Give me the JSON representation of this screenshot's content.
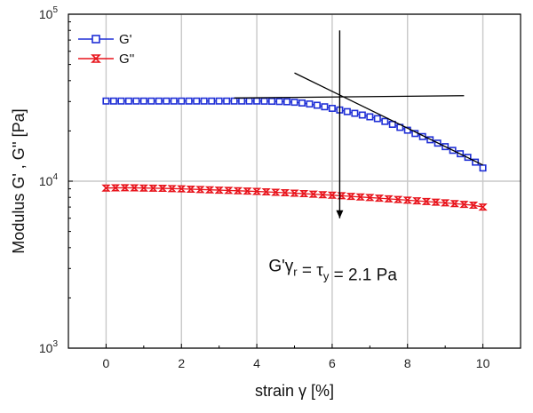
{
  "chart_data": {
    "type": "scatter",
    "xlabel": "strain γ [%]",
    "ylabel": "Modulus G' , G'' [Pa]",
    "xlim": [
      -1,
      11
    ],
    "ylim": [
      1000,
      100000
    ],
    "yscale": "log",
    "grid": true,
    "legend_position": "top-left",
    "x_ticks": [
      0,
      2,
      4,
      6,
      8,
      10
    ],
    "y_ticks": [
      {
        "value": 1000,
        "base": "10",
        "exp": "3"
      },
      {
        "value": 10000,
        "base": "10",
        "exp": "4"
      },
      {
        "value": 100000,
        "base": "10",
        "exp": "5"
      }
    ],
    "series": [
      {
        "name": "G'",
        "color": "#1f2fd6",
        "marker": "square",
        "points": [
          [
            0,
            30200
          ],
          [
            0.2,
            30200
          ],
          [
            0.4,
            30200
          ],
          [
            0.6,
            30200
          ],
          [
            0.8,
            30200
          ],
          [
            1,
            30200
          ],
          [
            1.2,
            30200
          ],
          [
            1.4,
            30200
          ],
          [
            1.6,
            30200
          ],
          [
            1.8,
            30200
          ],
          [
            2,
            30200
          ],
          [
            2.2,
            30200
          ],
          [
            2.4,
            30200
          ],
          [
            2.6,
            30200
          ],
          [
            2.8,
            30200
          ],
          [
            3,
            30200
          ],
          [
            3.2,
            30200
          ],
          [
            3.4,
            30200
          ],
          [
            3.6,
            30200
          ],
          [
            3.8,
            30200
          ],
          [
            4,
            30200
          ],
          [
            4.2,
            30150
          ],
          [
            4.4,
            30100
          ],
          [
            4.6,
            30000
          ],
          [
            4.8,
            29900
          ],
          [
            5,
            29700
          ],
          [
            5.2,
            29400
          ],
          [
            5.4,
            29000
          ],
          [
            5.6,
            28500
          ],
          [
            5.8,
            27900
          ],
          [
            6,
            27300
          ],
          [
            6.2,
            26700
          ],
          [
            6.4,
            26100
          ],
          [
            6.6,
            25500
          ],
          [
            6.8,
            24900
          ],
          [
            7,
            24300
          ],
          [
            7.2,
            23700
          ],
          [
            7.4,
            22800
          ],
          [
            7.6,
            21900
          ],
          [
            7.8,
            21000
          ],
          [
            8,
            20200
          ],
          [
            8.2,
            19300
          ],
          [
            8.4,
            18500
          ],
          [
            8.6,
            17700
          ],
          [
            8.8,
            16900
          ],
          [
            9,
            16100
          ],
          [
            9.2,
            15300
          ],
          [
            9.4,
            14600
          ],
          [
            9.6,
            13900
          ],
          [
            9.8,
            13000
          ],
          [
            10,
            12000
          ]
        ]
      },
      {
        "name": "G''",
        "color": "#e8141c",
        "marker": "hourglass",
        "points": [
          [
            0,
            9100
          ],
          [
            0.25,
            9120
          ],
          [
            0.5,
            9130
          ],
          [
            0.75,
            9120
          ],
          [
            1,
            9100
          ],
          [
            1.25,
            9080
          ],
          [
            1.5,
            9060
          ],
          [
            1.75,
            9030
          ],
          [
            2,
            9000
          ],
          [
            2.25,
            8960
          ],
          [
            2.5,
            8920
          ],
          [
            2.75,
            8880
          ],
          [
            3,
            8840
          ],
          [
            3.25,
            8800
          ],
          [
            3.5,
            8760
          ],
          [
            3.75,
            8720
          ],
          [
            4,
            8680
          ],
          [
            4.25,
            8630
          ],
          [
            4.5,
            8580
          ],
          [
            4.75,
            8530
          ],
          [
            5,
            8480
          ],
          [
            5.25,
            8420
          ],
          [
            5.5,
            8360
          ],
          [
            5.75,
            8300
          ],
          [
            6,
            8240
          ],
          [
            6.25,
            8180
          ],
          [
            6.5,
            8110
          ],
          [
            6.75,
            8040
          ],
          [
            7,
            7980
          ],
          [
            7.25,
            7910
          ],
          [
            7.5,
            7840
          ],
          [
            7.75,
            7770
          ],
          [
            8,
            7700
          ],
          [
            8.25,
            7630
          ],
          [
            8.5,
            7560
          ],
          [
            8.75,
            7490
          ],
          [
            9,
            7420
          ],
          [
            9.25,
            7340
          ],
          [
            9.5,
            7260
          ],
          [
            9.75,
            7180
          ],
          [
            10,
            7000
          ]
        ]
      }
    ],
    "annotation": {
      "prefix": "G'γ",
      "sub1": "r",
      "middle": " = τ",
      "sub2": "y",
      "suffix": " = 2.1 Pa",
      "data_x": 6.2,
      "data_y": 5200
    },
    "tangent_lines": [
      {
        "x1": 3.4,
        "y1": 31500,
        "x2": 9.5,
        "y2": 32500
      },
      {
        "x1": 5.0,
        "y1": 44500,
        "x2": 10.0,
        "y2": 12500
      }
    ],
    "arrow": {
      "x": 6.2,
      "y_start": 80000,
      "y_end": 6000
    }
  }
}
